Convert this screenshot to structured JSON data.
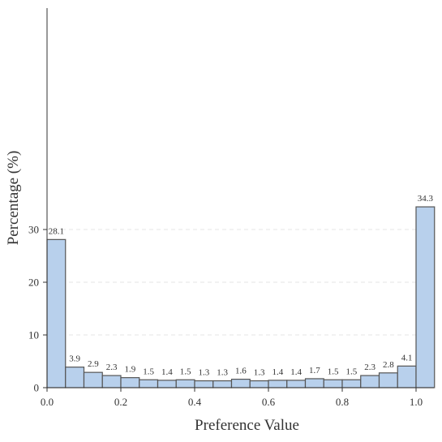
{
  "chart_data": {
    "type": "bar",
    "xlabel": "Preference Value",
    "ylabel": "Percentage (%)",
    "xlim": [
      0.0,
      1.0
    ],
    "ylim": [
      0,
      36
    ],
    "grid": true,
    "bar_color": "#b8d0ec",
    "edge_color": "#555555",
    "x_ticks": [
      "0.0",
      "0.2",
      "0.4",
      "0.6",
      "0.8",
      "1.0"
    ],
    "y_ticks": [
      "0",
      "10",
      "20",
      "30"
    ],
    "bins": [
      {
        "x_start": 0.0,
        "x_end": 0.05,
        "value": 28.1
      },
      {
        "x_start": 0.05,
        "x_end": 0.1,
        "value": 3.9
      },
      {
        "x_start": 0.1,
        "x_end": 0.15,
        "value": 2.9
      },
      {
        "x_start": 0.15,
        "x_end": 0.2,
        "value": 2.3
      },
      {
        "x_start": 0.2,
        "x_end": 0.25,
        "value": 1.9
      },
      {
        "x_start": 0.25,
        "x_end": 0.3,
        "value": 1.5
      },
      {
        "x_start": 0.3,
        "x_end": 0.35,
        "value": 1.4
      },
      {
        "x_start": 0.35,
        "x_end": 0.4,
        "value": 1.5
      },
      {
        "x_start": 0.4,
        "x_end": 0.45,
        "value": 1.3
      },
      {
        "x_start": 0.45,
        "x_end": 0.5,
        "value": 1.3
      },
      {
        "x_start": 0.5,
        "x_end": 0.55,
        "value": 1.6
      },
      {
        "x_start": 0.55,
        "x_end": 0.6,
        "value": 1.3
      },
      {
        "x_start": 0.6,
        "x_end": 0.65,
        "value": 1.4
      },
      {
        "x_start": 0.65,
        "x_end": 0.7,
        "value": 1.4
      },
      {
        "x_start": 0.7,
        "x_end": 0.75,
        "value": 1.7
      },
      {
        "x_start": 0.75,
        "x_end": 0.8,
        "value": 1.5
      },
      {
        "x_start": 0.8,
        "x_end": 0.85,
        "value": 1.5
      },
      {
        "x_start": 0.85,
        "x_end": 0.9,
        "value": 2.3
      },
      {
        "x_start": 0.9,
        "x_end": 0.95,
        "value": 2.8
      },
      {
        "x_start": 0.95,
        "x_end": 1.0,
        "value": 4.1
      },
      {
        "x_start": 1.0,
        "x_end": 1.05,
        "value": 34.3
      }
    ]
  }
}
